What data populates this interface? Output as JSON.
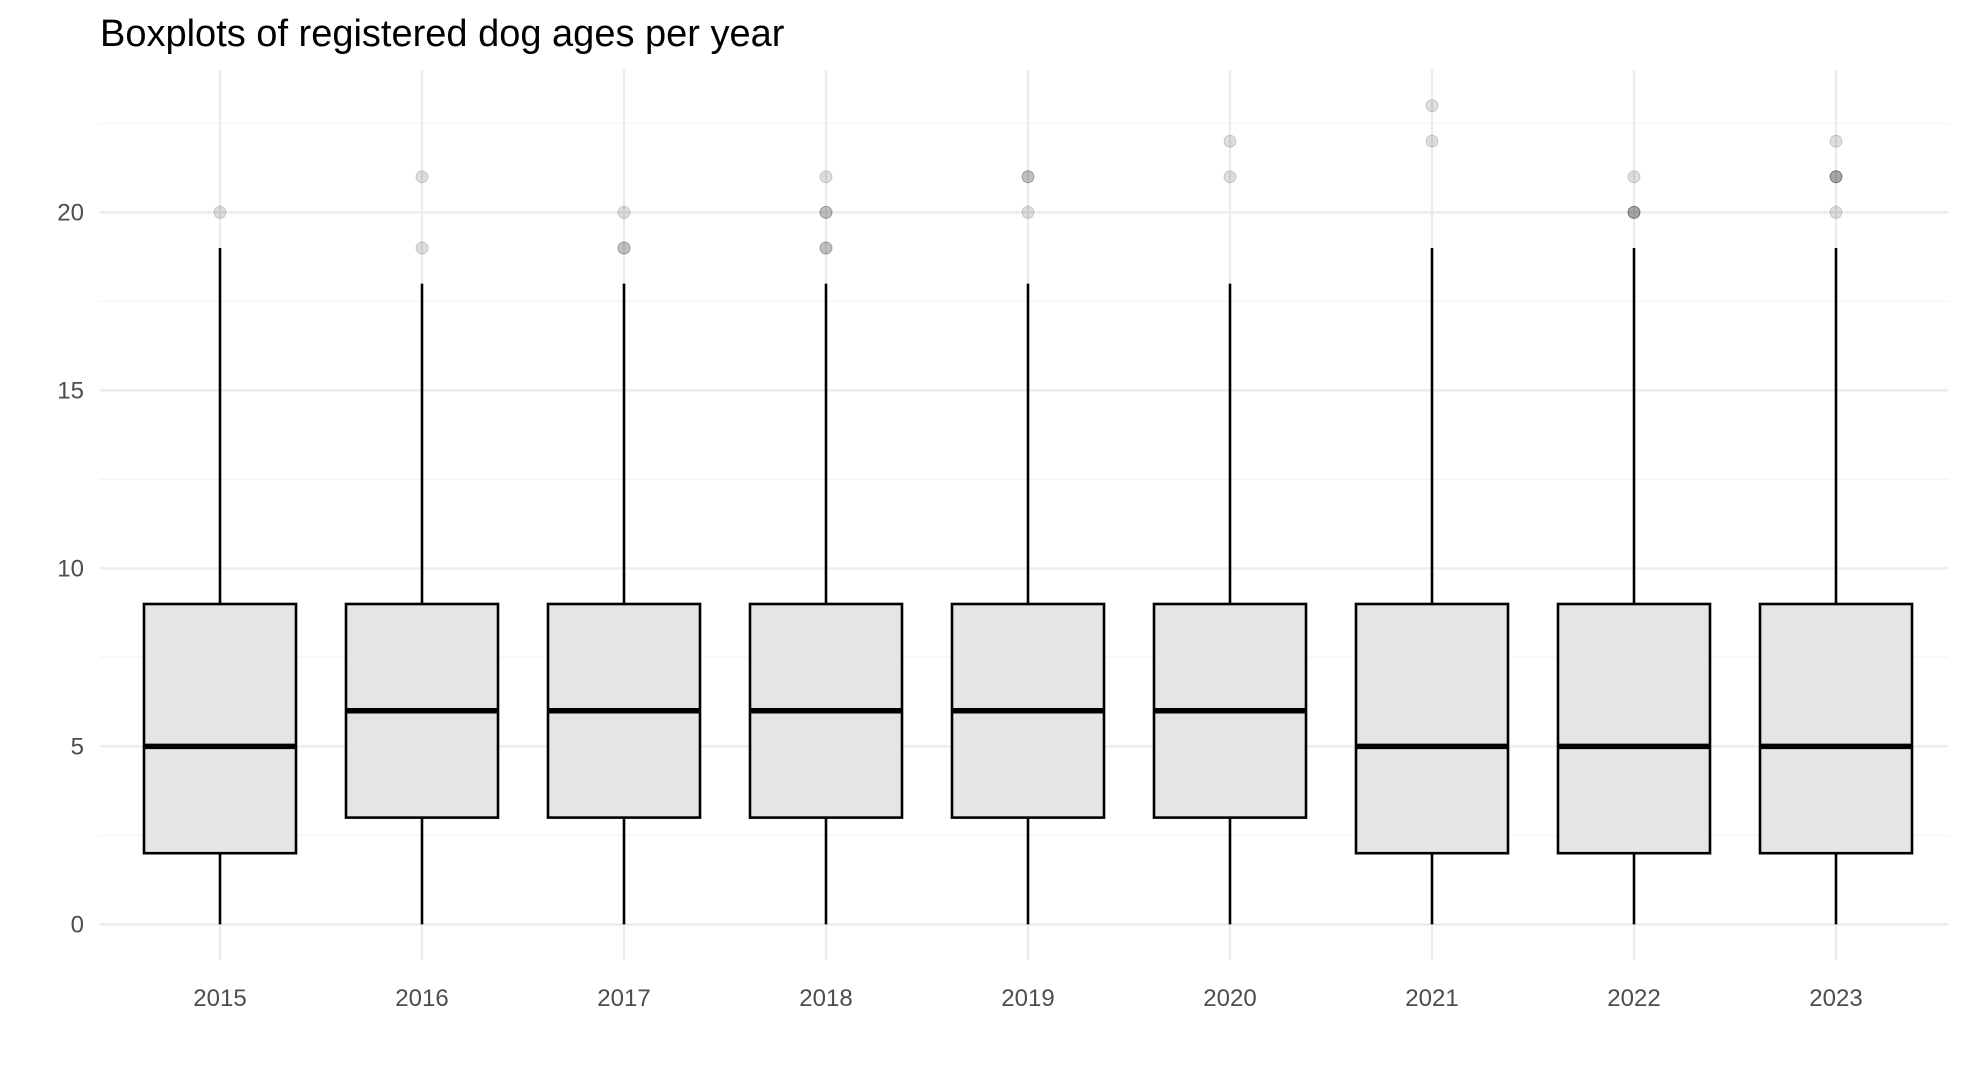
{
  "chart_data": {
    "type": "boxplot",
    "title": "Boxplots of registered dog ages per year",
    "xlabel": "",
    "ylabel": "",
    "ylim": [
      -1,
      24
    ],
    "yticks": [
      0,
      5,
      10,
      15,
      20
    ],
    "grid": true,
    "colors": {
      "box_fill": "#e5e5e5",
      "box_line": "#000000",
      "grid": "#ebebeb",
      "outlier": "#000000"
    },
    "categories": [
      "2015",
      "2016",
      "2017",
      "2018",
      "2019",
      "2020",
      "2021",
      "2022",
      "2023"
    ],
    "boxes": [
      {
        "category": "2015",
        "lower_whisker": 0,
        "q1": 2,
        "median": 5,
        "q3": 9,
        "upper_whisker": 19,
        "outliers": [
          20
        ]
      },
      {
        "category": "2016",
        "lower_whisker": 0,
        "q1": 3,
        "median": 6,
        "q3": 9,
        "upper_whisker": 18,
        "outliers": [
          19,
          21
        ]
      },
      {
        "category": "2017",
        "lower_whisker": 0,
        "q1": 3,
        "median": 6,
        "q3": 9,
        "upper_whisker": 18,
        "outliers": [
          19,
          19,
          20
        ]
      },
      {
        "category": "2018",
        "lower_whisker": 0,
        "q1": 3,
        "median": 6,
        "q3": 9,
        "upper_whisker": 18,
        "outliers": [
          19,
          19,
          20,
          20,
          21
        ]
      },
      {
        "category": "2019",
        "lower_whisker": 0,
        "q1": 3,
        "median": 6,
        "q3": 9,
        "upper_whisker": 18,
        "outliers": [
          20,
          21,
          21
        ]
      },
      {
        "category": "2020",
        "lower_whisker": 0,
        "q1": 3,
        "median": 6,
        "q3": 9,
        "upper_whisker": 18,
        "outliers": [
          21,
          22
        ]
      },
      {
        "category": "2021",
        "lower_whisker": 0,
        "q1": 2,
        "median": 5,
        "q3": 9,
        "upper_whisker": 19,
        "outliers": [
          22,
          23
        ]
      },
      {
        "category": "2022",
        "lower_whisker": 0,
        "q1": 2,
        "median": 5,
        "q3": 9,
        "upper_whisker": 19,
        "outliers": [
          20,
          20,
          20,
          21
        ]
      },
      {
        "category": "2023",
        "lower_whisker": 0,
        "q1": 2,
        "median": 5,
        "q3": 9,
        "upper_whisker": 19,
        "outliers": [
          20,
          21,
          21,
          21,
          22
        ]
      }
    ]
  }
}
